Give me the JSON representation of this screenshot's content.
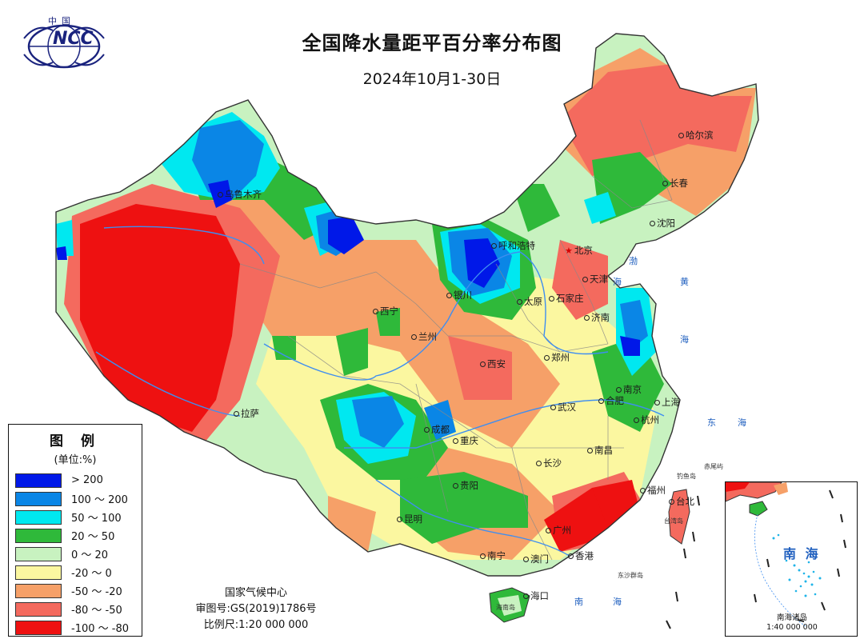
{
  "title": "全国降水量距平百分率分布图",
  "subtitle": "2024年10月1-30日",
  "logo": {
    "top_text": "中国",
    "text": "NCC"
  },
  "legend": {
    "title": "图 例",
    "unit": "(单位:%)",
    "items": [
      {
        "label": "> 200",
        "color": "#0018e8"
      },
      {
        "label": "100 ～ 200",
        "color": "#0a86e6"
      },
      {
        "label": "50 ～ 100",
        "color": "#00e8f0"
      },
      {
        "label": "20 ～ 50",
        "color": "#2fb93a"
      },
      {
        "label": "0 ～ 20",
        "color": "#c8f2c0"
      },
      {
        "label": "-20 ～ 0",
        "color": "#fbf7a0"
      },
      {
        "label": "-50 ～ -20",
        "color": "#f6a068"
      },
      {
        "label": "-80 ～ -50",
        "color": "#f46a5e"
      },
      {
        "label": "-100 ～ -80",
        "color": "#ee1111"
      }
    ]
  },
  "credits": {
    "org": "国家气候中心",
    "approval": "审图号:GS(2019)1786号",
    "scale": "比例尺:1:20 000 000"
  },
  "inset": {
    "title": "南 海",
    "caption_line1": "南海诸岛",
    "caption_line2": "1:40 000 000"
  },
  "cities": [
    {
      "name": "哈尔滨",
      "type": "dot"
    },
    {
      "name": "长春",
      "type": "dot"
    },
    {
      "name": "沈阳",
      "type": "dot"
    },
    {
      "name": "乌鲁木齐",
      "type": "dot"
    },
    {
      "name": "呼和浩特",
      "type": "dot"
    },
    {
      "name": "北京",
      "type": "star"
    },
    {
      "name": "天津",
      "type": "dot"
    },
    {
      "name": "银川",
      "type": "dot"
    },
    {
      "name": "太原",
      "type": "dot"
    },
    {
      "name": "石家庄",
      "type": "dot"
    },
    {
      "name": "济南",
      "type": "dot"
    },
    {
      "name": "西宁",
      "type": "dot"
    },
    {
      "name": "兰州",
      "type": "dot"
    },
    {
      "name": "郑州",
      "type": "dot"
    },
    {
      "name": "西安",
      "type": "dot"
    },
    {
      "name": "南京",
      "type": "dot"
    },
    {
      "name": "合肥",
      "type": "dot"
    },
    {
      "name": "上海",
      "type": "dot"
    },
    {
      "name": "武汉",
      "type": "dot"
    },
    {
      "name": "杭州",
      "type": "dot"
    },
    {
      "name": "拉萨",
      "type": "dot"
    },
    {
      "name": "成都",
      "type": "dot"
    },
    {
      "name": "重庆",
      "type": "dot"
    },
    {
      "name": "南昌",
      "type": "dot"
    },
    {
      "name": "长沙",
      "type": "dot"
    },
    {
      "name": "贵阳",
      "type": "dot"
    },
    {
      "name": "福州",
      "type": "dot"
    },
    {
      "name": "台北",
      "type": "dot"
    },
    {
      "name": "昆明",
      "type": "dot"
    },
    {
      "name": "广州",
      "type": "dot"
    },
    {
      "name": "南宁",
      "type": "dot"
    },
    {
      "name": "澳门",
      "type": "dot"
    },
    {
      "name": "香港",
      "type": "dot"
    },
    {
      "name": "海口",
      "type": "dot"
    }
  ],
  "seas": [
    "渤",
    "海",
    "黄",
    "海",
    "东",
    "海",
    "南",
    "海"
  ],
  "islands": {
    "chiwei": "赤尾屿",
    "diaoyu": "钓鱼岛",
    "taiwan": "台湾岛",
    "dongsha": "东沙群岛",
    "hainan": "海南岛"
  }
}
